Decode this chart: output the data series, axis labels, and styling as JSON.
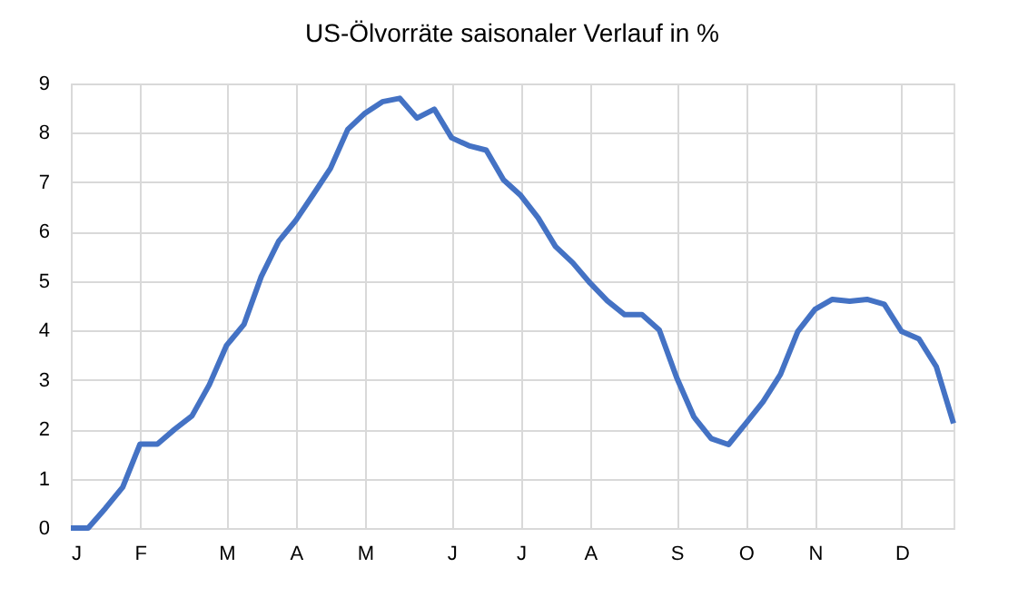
{
  "chart_data": {
    "type": "line",
    "title": "US-Ölvorräte saisonaler Verlauf in %",
    "categories": [
      "J",
      null,
      null,
      null,
      "F",
      null,
      null,
      null,
      null,
      "M",
      null,
      null,
      null,
      "A",
      null,
      null,
      null,
      "M",
      null,
      null,
      null,
      null,
      "J",
      null,
      null,
      null,
      "J",
      null,
      null,
      null,
      "A",
      null,
      null,
      null,
      null,
      "S",
      null,
      null,
      null,
      "O",
      null,
      null,
      null,
      "N",
      null,
      null,
      null,
      null,
      "D",
      null,
      null,
      null
    ],
    "series": [
      {
        "color": "#4472c4",
        "values": [
          0,
          0,
          0.4,
          0.83,
          1.7,
          1.7,
          2.0,
          2.27,
          2.9,
          3.7,
          4.12,
          5.09,
          5.8,
          6.23,
          6.75,
          7.28,
          8.07,
          8.4,
          8.63,
          8.7,
          8.3,
          8.48,
          7.9,
          7.74,
          7.65,
          7.05,
          6.73,
          6.28,
          5.7,
          5.37,
          4.96,
          4.6,
          4.32,
          4.32,
          4.01,
          3.05,
          2.25,
          1.81,
          1.69,
          2.12,
          2.56,
          3.11,
          3.98,
          4.43,
          4.63,
          4.59,
          4.63,
          4.53,
          3.98,
          3.83,
          3.27,
          2.12
        ]
      }
    ],
    "ylim": [
      0,
      9
    ],
    "yticks": [
      0,
      1,
      2,
      3,
      4,
      5,
      6,
      7,
      8,
      9
    ],
    "grid": true,
    "line_style": "solid",
    "marker": "none"
  }
}
